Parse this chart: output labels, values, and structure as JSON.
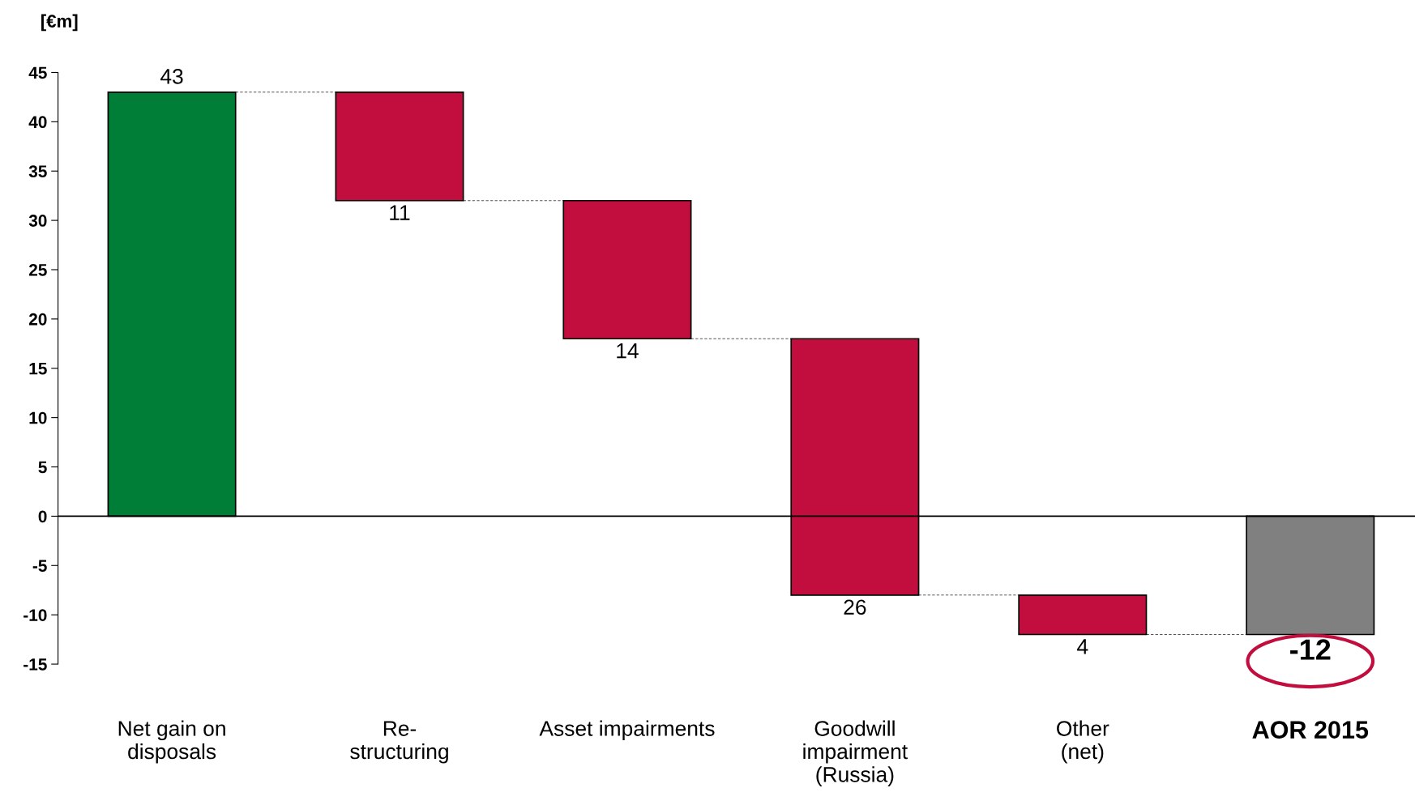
{
  "chart_data": {
    "type": "bar",
    "ylabel": "[€m]",
    "categories": [
      "Net gain on\ndisposals",
      "Re-\nstructuring",
      "Asset impairments",
      "Goodwill\nimpairment\n(Russia)",
      "Other\n(net)",
      "AOR 2015"
    ],
    "values": [
      43,
      -11,
      -14,
      -26,
      -4,
      -12
    ],
    "base": [
      0,
      43,
      32,
      18,
      -8,
      0
    ],
    "colors": [
      "#007d36",
      "#c20e3e",
      "#c20e3e",
      "#c20e3e",
      "#c20e3e",
      "#808080"
    ],
    "value_labels": [
      "43",
      "11",
      "14",
      "26",
      "4",
      "-12"
    ],
    "ylim": [
      -15,
      45
    ],
    "yticks": [
      -15,
      -10,
      -5,
      0,
      5,
      10,
      15,
      20,
      25,
      30,
      35,
      40,
      45
    ],
    "ref_lines": [
      {
        "axis": "y",
        "value": 0,
        "color": "#000000"
      }
    ],
    "grid": false,
    "legend": false
  }
}
